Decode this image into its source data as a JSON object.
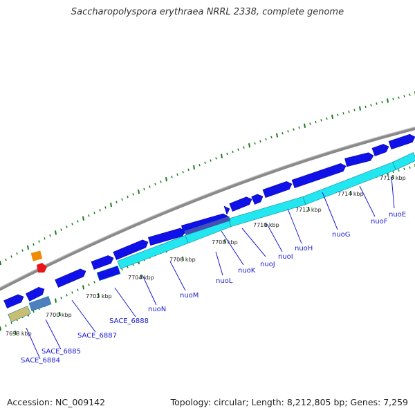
{
  "title": "Saccharopolyspora erythraea NRRL 2338, complete genome",
  "footer": {
    "accession": "Accession: NC_009142",
    "summary": "Topology: circular; Length: 8,212,805 bp; Genes: 7,259"
  },
  "colors": {
    "gene_blue": "#1010e8",
    "gene_cyan": "#22e6f0",
    "backbone_gray": "#8a8a8a",
    "tick_green": "#1a7a1a",
    "label_blue": "#1a1ad6",
    "steel_blue": "#4f7fbf",
    "khaki": "#c8bd72",
    "dark_slate": "#4a4ab8"
  },
  "ticks": [
    {
      "label": "7698 kbp"
    },
    {
      "label": "7700 kbp"
    },
    {
      "label": "7702 kbp"
    },
    {
      "label": "7704 kbp"
    },
    {
      "label": "7706 kbp"
    },
    {
      "label": "7708 kbp"
    },
    {
      "label": "7710 kbp"
    },
    {
      "label": "7712 kbp"
    },
    {
      "label": "7714 kbp"
    },
    {
      "label": "7716 kbp"
    }
  ],
  "genes": [
    {
      "label": "SACE_6884"
    },
    {
      "label": "SACE_6885"
    },
    {
      "label": "SACE_6887"
    },
    {
      "label": "SACE_6888"
    },
    {
      "label": "nuoN"
    },
    {
      "label": "nuoM"
    },
    {
      "label": "nuoL"
    },
    {
      "label": "nuoK"
    },
    {
      "label": "nuoJ"
    },
    {
      "label": "nuoI"
    },
    {
      "label": "nuoH"
    },
    {
      "label": "nuoG"
    },
    {
      "label": "nuoF"
    },
    {
      "label": "nuoE"
    }
  ]
}
